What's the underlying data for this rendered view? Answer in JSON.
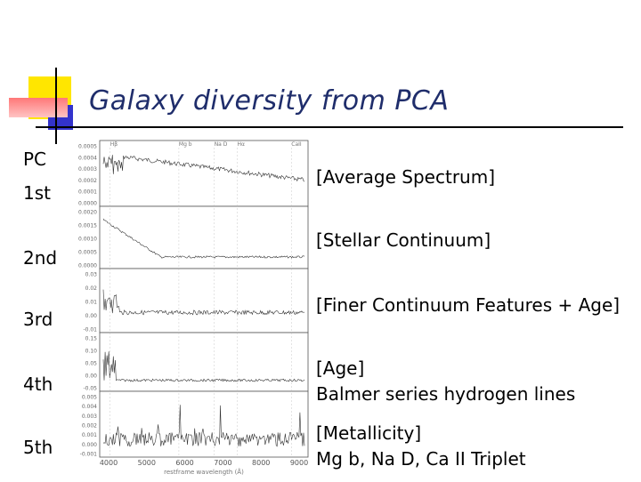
{
  "slide": {
    "title": "Galaxy diversity from PCA",
    "components": [
      {
        "label": "1st",
        "description_lines": [
          "[Average Spectrum]"
        ]
      },
      {
        "label": "2nd",
        "description_lines": [
          "[Stellar Continuum]"
        ]
      },
      {
        "label": "3rd",
        "description_lines": [
          "[Finer Continuum Features + Age]"
        ]
      },
      {
        "label": "4th",
        "description_lines": [
          "[Age]",
          "Balmer series hydrogen lines"
        ]
      },
      {
        "label": "5th",
        "description_lines": [
          "[Metallicity]",
          "Mg b, Na D, Ca II Triplet"
        ]
      }
    ],
    "pc_header": "PC"
  },
  "figure": {
    "xlabel": "restframe wavelength (Å)",
    "x_ticks": [
      "4000",
      "5000",
      "6000",
      "7000",
      "8000",
      "9000"
    ],
    "top_annotations": [
      "Hβ",
      "Mg b",
      "Na D",
      "Hα",
      "CaII"
    ],
    "panels": [
      {
        "name": "panel-1st",
        "y_ticks": [
          "0.0005",
          "0.0004",
          "0.0003",
          "0.0002",
          "0.0001",
          "0.0000"
        ]
      },
      {
        "name": "panel-2nd",
        "y_ticks": [
          "0.0020",
          "0.0015",
          "0.0010",
          "0.0005",
          "0.0000"
        ]
      },
      {
        "name": "panel-3rd",
        "y_ticks": [
          "0.03",
          "0.02",
          "0.01",
          "0.00",
          "-0.01"
        ]
      },
      {
        "name": "panel-4th",
        "y_ticks": [
          "0.15",
          "0.10",
          "0.05",
          "0.00",
          "-0.05"
        ]
      },
      {
        "name": "panel-5th",
        "y_ticks": [
          "0.005",
          "0.004",
          "0.003",
          "0.002",
          "0.001",
          "0.000",
          "-0.001"
        ]
      }
    ]
  },
  "colors": {
    "title": "#1f2d6b",
    "deco_yellow": "#ffe600",
    "deco_blue": "#3333cc",
    "deco_pink": "#ff7777"
  }
}
